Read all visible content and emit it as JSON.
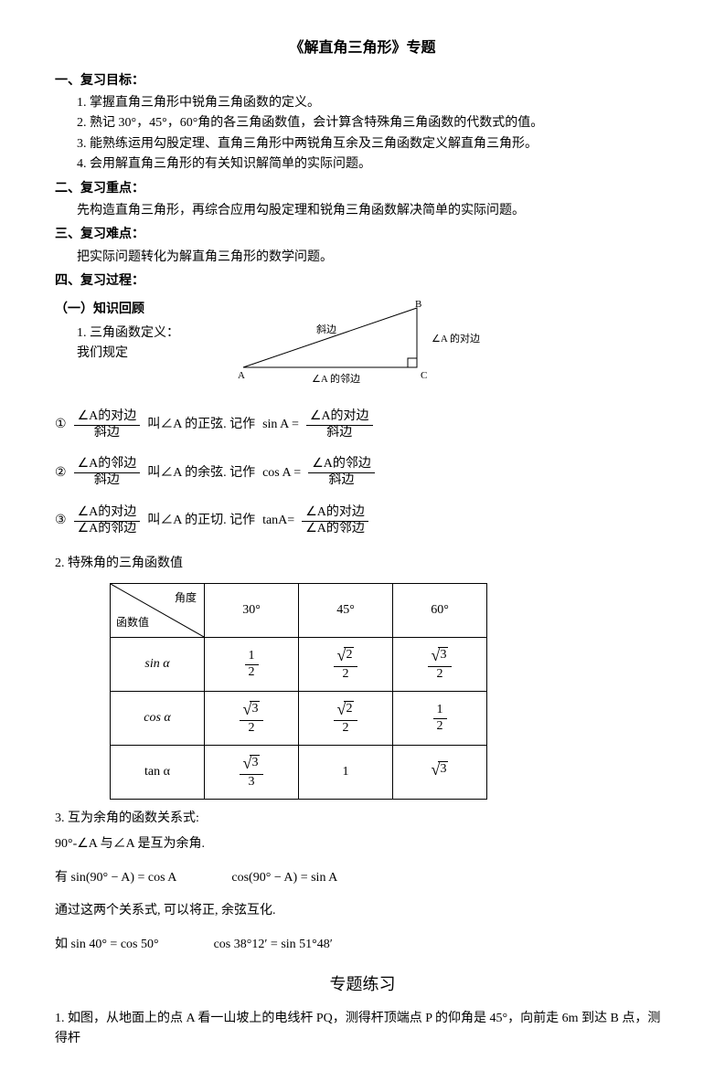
{
  "title": "《解直角三角形》专题",
  "section1": {
    "heading": "一、复习目标：",
    "items": [
      "1. 掌握直角三角形中锐角三角函数的定义。",
      "2. 熟记 30°，45°，60°角的各三角函数值，会计算含特殊角三角函数的代数式的值。",
      "3. 能熟练运用勾股定理、直角三角形中两锐角互余及三角函数定义解直角三角形。",
      "4. 会用解直角三角形的有关知识解简单的实际问题。"
    ]
  },
  "section2": {
    "heading": "二、复习重点：",
    "text": "先构造直角三角形，再综合应用勾股定理和锐角三角函数解决简单的实际问题。"
  },
  "section3": {
    "heading": "三、复习难点：",
    "text": "把实际问题转化为解直角三角形的数学问题。"
  },
  "section4": {
    "heading": "四、复习过程：",
    "sub1": "（一）知识回顾",
    "knowledge1": {
      "title": "1. 三角函数定义：",
      "text": "我们规定",
      "triangle": {
        "label_hyp": "斜边",
        "label_opp": "∠A 的对边",
        "label_adj": "∠A 的邻边",
        "vA": "A",
        "vB": "B",
        "vC": "C",
        "stroke": "#000"
      },
      "defs": [
        {
          "marker": "①",
          "left_num": "∠A的对边",
          "left_den": "斜边",
          "mid": "叫∠A 的正弦. 记作",
          "fn": "sin A =",
          "right_num": "∠A的对边",
          "right_den": "斜边"
        },
        {
          "marker": "②",
          "left_num": "∠A的邻边",
          "left_den": "斜边",
          "mid": "叫∠A 的余弦. 记作",
          "fn": "cos A =",
          "right_num": "∠A的邻边",
          "right_den": "斜边"
        },
        {
          "marker": "③",
          "left_num": "∠A的对边",
          "left_den": "∠A的邻边",
          "mid": "叫∠A 的正切. 记作",
          "fn": "tanA=",
          "right_num": "∠A的对边",
          "right_den": "∠A的邻边"
        }
      ]
    },
    "knowledge2": {
      "title": "2. 特殊角的三角函数值",
      "table": {
        "diag_top": "角度",
        "diag_bottom": "函数值",
        "col_headers": [
          "30°",
          "45°",
          "60°"
        ],
        "row_labels": [
          "sin α",
          "cos α",
          "tan α"
        ],
        "cells": {
          "sin": [
            {
              "type": "frac",
              "num": "1",
              "den": "2"
            },
            {
              "type": "sqrtfrac",
              "num": "2",
              "den": "2"
            },
            {
              "type": "sqrtfrac",
              "num": "3",
              "den": "2"
            }
          ],
          "cos": [
            {
              "type": "sqrtfrac",
              "num": "3",
              "den": "2"
            },
            {
              "type": "sqrtfrac",
              "num": "2",
              "den": "2"
            },
            {
              "type": "frac",
              "num": "1",
              "den": "2"
            }
          ],
          "tan": [
            {
              "type": "sqrtfrac",
              "num": "3",
              "den": "3"
            },
            {
              "type": "plain",
              "val": "1"
            },
            {
              "type": "sqrt",
              "val": "3"
            }
          ]
        }
      }
    },
    "knowledge3": {
      "title": "3. 互为余角的函数关系式:",
      "line1": "90°-∠A 与∠A 是互为余角.",
      "eq1": "有 sin(90° − A) = cos A",
      "eq2": "cos(90° − A) = sin A",
      "line2": "通过这两个关系式, 可以将正, 余弦互化.",
      "eq3": "如 sin 40° = cos 50°",
      "eq4": "cos 38°12′ = sin 51°48′"
    }
  },
  "practice": {
    "heading": "专题练习",
    "q1": "1. 如图，从地面上的点 A 看一山坡上的电线杆 PQ，测得杆顶端点 P 的仰角是 45°，向前走 6m 到达 B 点，测得杆"
  }
}
